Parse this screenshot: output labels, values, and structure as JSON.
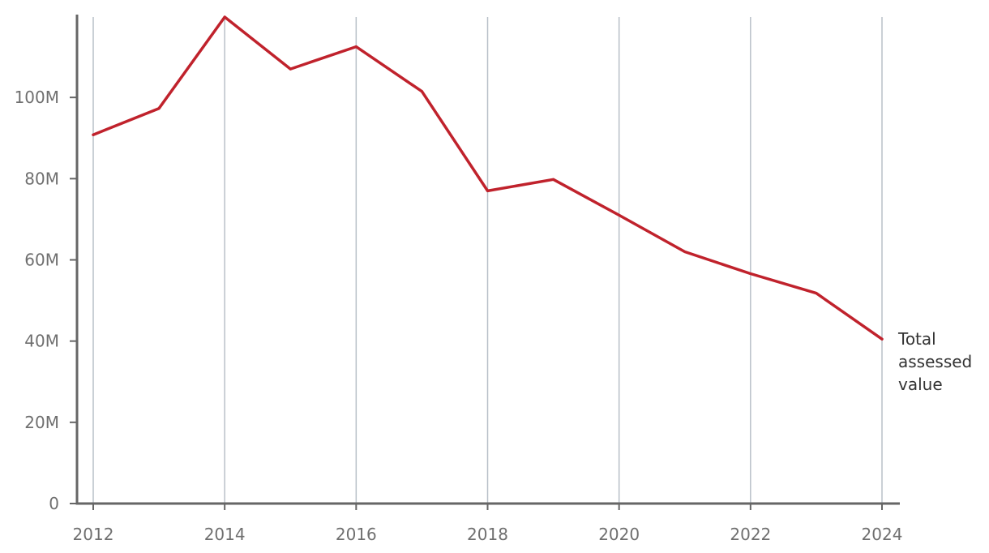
{
  "chart_data": {
    "type": "line",
    "x": [
      2012,
      2013,
      2014,
      2015,
      2016,
      2017,
      2018,
      2019,
      2020,
      2021,
      2022,
      2023,
      2024
    ],
    "series": [
      {
        "name": "Total assessed value",
        "label_lines": [
          "Total",
          "assessed",
          "value"
        ],
        "values": [
          90800000,
          97300000,
          119800000,
          107000000,
          112500000,
          101500000,
          77000000,
          79800000,
          71000000,
          62000000,
          56600000,
          51800000,
          40500000
        ],
        "color": "#c0222c"
      }
    ],
    "xticks": [
      "2012",
      "2014",
      "2016",
      "2018",
      "2020",
      "2022",
      "2024"
    ],
    "yticks": [
      {
        "value": 0,
        "label": "0"
      },
      {
        "value": 20000000,
        "label": "20M"
      },
      {
        "value": 40000000,
        "label": "40M"
      },
      {
        "value": 60000000,
        "label": "60M"
      },
      {
        "value": 80000000,
        "label": "80M"
      },
      {
        "value": 100000000,
        "label": "100M"
      }
    ],
    "xlim": [
      2012,
      2024
    ],
    "ylim": [
      0,
      119800000
    ],
    "vertical_grid": true,
    "horizontal_grid": false,
    "title": "",
    "xlabel": "",
    "ylabel": ""
  }
}
